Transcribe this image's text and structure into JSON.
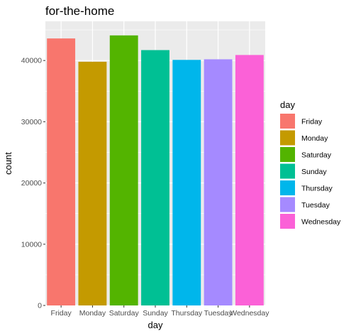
{
  "chart_data": {
    "type": "bar",
    "title": "for-the-home",
    "xlabel": "day",
    "ylabel": "count",
    "categories": [
      "Friday",
      "Monday",
      "Saturday",
      "Sunday",
      "Thursday",
      "Tuesday",
      "Wednesday"
    ],
    "values": [
      43600,
      39800,
      44100,
      41700,
      40100,
      40200,
      40900
    ],
    "colors": [
      "#F8766D",
      "#C49A00",
      "#53B400",
      "#00C094",
      "#00B6EB",
      "#A58AFF",
      "#FB61D7"
    ],
    "ylim": [
      0,
      46400
    ],
    "yticks": [
      0,
      10000,
      20000,
      30000,
      40000
    ],
    "ytick_labels": [
      "0",
      "10000",
      "20000",
      "30000",
      "40000"
    ],
    "grid": true,
    "panel_background": "#EBEBEB",
    "legend": {
      "title": "day",
      "position": "right",
      "labels": [
        "Friday",
        "Monday",
        "Saturday",
        "Sunday",
        "Thursday",
        "Tuesday",
        "Wednesday"
      ]
    }
  }
}
